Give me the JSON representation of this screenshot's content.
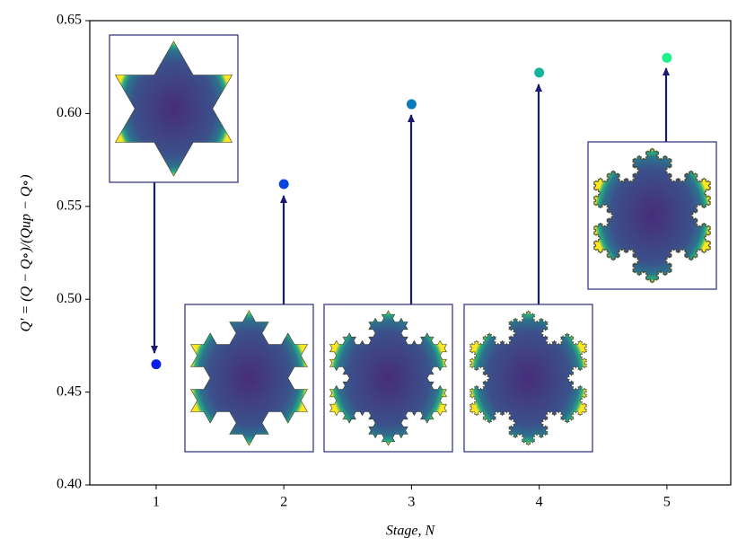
{
  "chart_data": {
    "type": "scatter",
    "x": [
      1,
      2,
      3,
      4,
      5
    ],
    "values": [
      0.465,
      0.562,
      0.605,
      0.622,
      0.63
    ],
    "colors": [
      "#0a1ee8",
      "#0a44e0",
      "#0a7ab8",
      "#14b49a",
      "#1ef08a"
    ],
    "xlim": [
      0.48,
      5.5
    ],
    "ylim": [
      0.4,
      0.65
    ],
    "xticks": [
      1,
      2,
      3,
      4,
      5
    ],
    "yticks": [
      {
        "value": 0.4,
        "label": "0.40"
      },
      0.45,
      {
        "value": 0.5,
        "label": "0.50"
      },
      0.55,
      {
        "value": 0.6,
        "label": "0.60"
      },
      0.65
    ],
    "xlabel": "Stage, N",
    "ylabel": "Q′ = (Q − Q∘)/(Qup − Q∘)"
  }
}
